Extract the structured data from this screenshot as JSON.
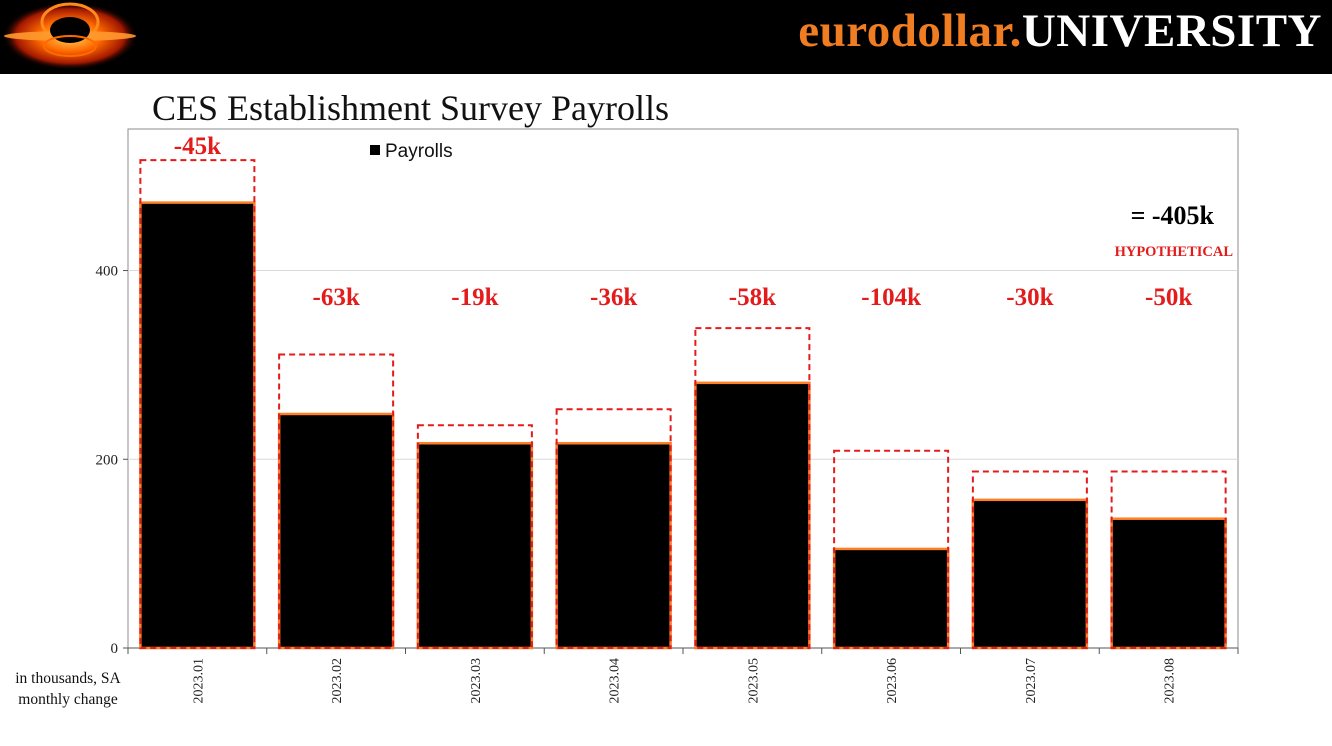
{
  "header": {
    "brand_part1": "eurodollar.",
    "brand_part2": "UNIVERSITY"
  },
  "unit_note": {
    "line1": "in thousands, SA",
    "line2": "monthly change"
  },
  "chart_data": {
    "type": "bar",
    "title": "CES Establishment Survey Payrolls",
    "categories": [
      "2023.01",
      "2023.02",
      "2023.03",
      "2023.04",
      "2023.05",
      "2023.06",
      "2023.07",
      "2023.08"
    ],
    "series": [
      {
        "name": "Payrolls",
        "values": [
          472,
          248,
          217,
          217,
          281,
          105,
          157,
          137
        ]
      }
    ],
    "original_values": [
      517,
      311,
      236,
      253,
      339,
      209,
      187,
      187
    ],
    "revisions": [
      "-45k",
      "-63k",
      "-19k",
      "-36k",
      "-58k",
      "-104k",
      "-30k",
      "-50k"
    ],
    "total_revision": "=  -405k",
    "total_note": "HYPOTHETICAL",
    "yticks": [
      0,
      200,
      400
    ],
    "ylim": [
      0,
      550
    ],
    "grid": true,
    "legend_position": "top",
    "colors": {
      "bar_fill": "#000000",
      "bar_outline": "#ff7f27",
      "original_outline": "#e31b1b",
      "revision_text": "#e31b1b",
      "grid": "#d9d9d9"
    }
  }
}
